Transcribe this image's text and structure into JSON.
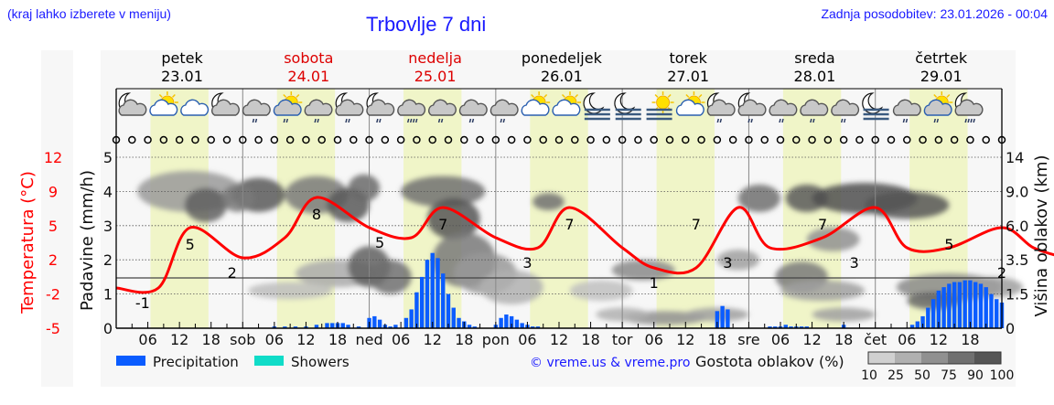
{
  "header": {
    "location_hint": "(kraj lahko izberete v meniju)",
    "title": "Trbovlje 7 dni",
    "last_update": "Zadnja posodobitev: 23.01.2026 - 00:04"
  },
  "days": [
    {
      "name": "petek",
      "date": "23.01",
      "color": "#000000"
    },
    {
      "name": "sobota",
      "date": "24.01",
      "color": "#dd0000"
    },
    {
      "name": "nedelja",
      "date": "25.01",
      "color": "#dd0000"
    },
    {
      "name": "ponedeljek",
      "date": "26.01",
      "color": "#000000"
    },
    {
      "name": "torek",
      "date": "27.01",
      "color": "#000000"
    },
    {
      "name": "sreda",
      "date": "28.01",
      "color": "#000000"
    },
    {
      "name": "četrtek",
      "date": "29.01",
      "color": "#000000"
    }
  ],
  "weather_icons": [
    "moon-cloud",
    "sun-cloud",
    "cloud",
    "moon-cloud",
    "cloud-rain",
    "sun-cloud-rain",
    "cloud-rain",
    "moon-cloud-rain",
    "moon-cloud-rain",
    "cloud-heavy-rain",
    "cloud-rain",
    "cloud-rain",
    "cloud-rain",
    "sun-cloud",
    "sun-cloud",
    "moon-fog",
    "moon-fog",
    "sun-fog",
    "sun-cloud",
    "moon-cloud-rain",
    "moon-cloud-rain",
    "cloud-rain",
    "cloud-rain",
    "cloud-rain",
    "moon-fog",
    "cloud-rain",
    "sun-cloud-rain",
    "moon-cloud-heavy-rain"
  ],
  "axes": {
    "left_temp_label": "Temperatura (°C)",
    "left_temp_ticks": [
      "12",
      "9",
      "5",
      "2",
      "-2",
      "-5"
    ],
    "left_precip_label": "Padavine (mm/h)",
    "left_precip_ticks": [
      "5",
      "4",
      "3",
      "2",
      "1",
      "0"
    ],
    "right_label": "Višina oblakov (km)",
    "right_ticks": [
      "14",
      "9.0",
      "6.0",
      "3.5",
      "1.5",
      "0"
    ],
    "x_ticks": [
      "06",
      "12",
      "18",
      "sob",
      "06",
      "12",
      "18",
      "ned",
      "06",
      "12",
      "18",
      "pon",
      "06",
      "12",
      "18",
      "tor",
      "06",
      "12",
      "18",
      "sre",
      "06",
      "12",
      "18",
      "čet",
      "06",
      "12",
      "18"
    ]
  },
  "legend": {
    "precipitation": {
      "label": "Precipitation",
      "color": "#0a5cff"
    },
    "showers": {
      "label": "Showers",
      "color": "#10dcc8"
    },
    "credit": "© vreme.us & vreme.pro",
    "cloud_density_label": "Gostota oblakov (%)",
    "cloud_density_ticks": [
      "10",
      "25",
      "50",
      "75",
      "90",
      "100"
    ]
  },
  "colors": {
    "temperature": "#ff0000",
    "precipitation": "#0a5cff",
    "daylight": "#f0f5c8",
    "title": "#1a1aff"
  },
  "chart_data": {
    "type": "line+bar+heatmap",
    "title": "Trbovlje 7 dni",
    "xlabel": "",
    "ylabel": "Padavine (mm/h)",
    "ylabel_secondary_left": "Temperatura (°C)",
    "ylabel_right": "Višina oblakov (km)",
    "ylim": [
      0,
      5
    ],
    "temp_ylim": [
      -5,
      12
    ],
    "temperature": {
      "hours": [
        0,
        8,
        14,
        24,
        32,
        38,
        48,
        56,
        62,
        72,
        80,
        86,
        96,
        102,
        110,
        118,
        124,
        134,
        144,
        150,
        158,
        168,
        174,
        180
      ],
      "values": [
        -1,
        -1,
        5,
        2,
        4,
        8,
        5,
        4,
        7,
        4,
        3,
        7,
        3,
        1,
        1,
        7,
        3,
        4,
        7,
        3,
        3,
        5,
        3,
        2
      ]
    },
    "temperature_labels": [
      {
        "hour": 5,
        "value": "-1"
      },
      {
        "hour": 14,
        "value": "5"
      },
      {
        "hour": 22,
        "value": "2"
      },
      {
        "hour": 38,
        "value": "8"
      },
      {
        "hour": 50,
        "value": "5"
      },
      {
        "hour": 62,
        "value": "7"
      },
      {
        "hour": 78,
        "value": "3"
      },
      {
        "hour": 86,
        "value": "7"
      },
      {
        "hour": 102,
        "value": "1"
      },
      {
        "hour": 110,
        "value": "7"
      },
      {
        "hour": 116,
        "value": "3"
      },
      {
        "hour": 134,
        "value": "7"
      },
      {
        "hour": 140,
        "value": "3"
      },
      {
        "hour": 158,
        "value": "5"
      },
      {
        "hour": 168,
        "value": "2"
      }
    ],
    "precipitation": {
      "hours": [
        30,
        32,
        34,
        36,
        38,
        40,
        41,
        42,
        43,
        44,
        46,
        48,
        49,
        50,
        51,
        52,
        53,
        55,
        56,
        57,
        58,
        59,
        60,
        61,
        62,
        63,
        64,
        65,
        66,
        67,
        68,
        72,
        73,
        74,
        75,
        76,
        77,
        78,
        79,
        80,
        114,
        115,
        116,
        124,
        125,
        126,
        127,
        128,
        129,
        130,
        131,
        138,
        151,
        152,
        153,
        154,
        155,
        156,
        157,
        158,
        159,
        160,
        161,
        162,
        163,
        164,
        165,
        166,
        167,
        168
      ],
      "values": [
        0.05,
        0.05,
        0.05,
        0.05,
        0.1,
        0.15,
        0.15,
        0.15,
        0.15,
        0.1,
        0.05,
        0.3,
        0.35,
        0.25,
        0.1,
        0.05,
        0.1,
        0.3,
        0.55,
        1.05,
        1.5,
        2.0,
        2.2,
        2.05,
        1.6,
        1.0,
        0.6,
        0.3,
        0.2,
        0.1,
        0.05,
        0.1,
        0.3,
        0.4,
        0.35,
        0.25,
        0.15,
        0.1,
        0.05,
        0.05,
        0.5,
        0.65,
        0.55,
        0.05,
        0.05,
        0.05,
        0.1,
        0.05,
        0.05,
        0.05,
        0.05,
        0.1,
        0.1,
        0.2,
        0.35,
        0.6,
        0.85,
        1.1,
        1.2,
        1.3,
        1.35,
        1.35,
        1.4,
        1.4,
        1.35,
        1.3,
        1.2,
        1.0,
        0.85,
        0.75
      ]
    },
    "cloud_height_ticks_km": [
      0,
      1.5,
      3.5,
      6.0,
      9.0,
      14
    ],
    "cloud_density_scale": [
      10,
      25,
      50,
      75,
      90,
      100
    ]
  }
}
